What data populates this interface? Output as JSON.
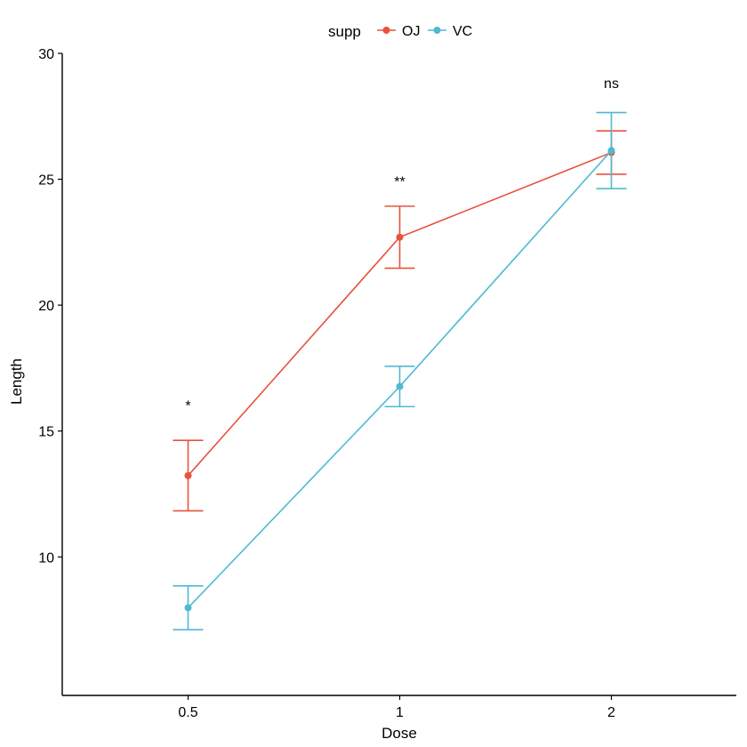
{
  "chart_data": {
    "type": "line",
    "x_categories": [
      "0.5",
      "1",
      "2"
    ],
    "xlabel": "Dose",
    "ylabel": "Length",
    "ylim": [
      4.5,
      30
    ],
    "y_ticks": [
      10,
      15,
      20,
      25,
      30
    ],
    "legend": {
      "title": "supp",
      "position": "top"
    },
    "grid": false,
    "series": [
      {
        "name": "OJ",
        "color": "#E7533D",
        "values": [
          13.23,
          22.7,
          26.06
        ],
        "error_low": [
          11.83,
          21.47,
          25.2
        ],
        "error_high": [
          14.63,
          23.93,
          26.92
        ]
      },
      {
        "name": "VC",
        "color": "#4FB9D3",
        "values": [
          7.98,
          16.77,
          26.14
        ],
        "error_low": [
          7.11,
          15.97,
          24.63
        ],
        "error_high": [
          8.85,
          17.57,
          27.65
        ]
      }
    ],
    "annotations": [
      {
        "x": "0.5",
        "y": 16.0,
        "text": "*"
      },
      {
        "x": "1",
        "y": 24.9,
        "text": "**"
      },
      {
        "x": "2",
        "y": 28.8,
        "text": "ns"
      }
    ]
  }
}
